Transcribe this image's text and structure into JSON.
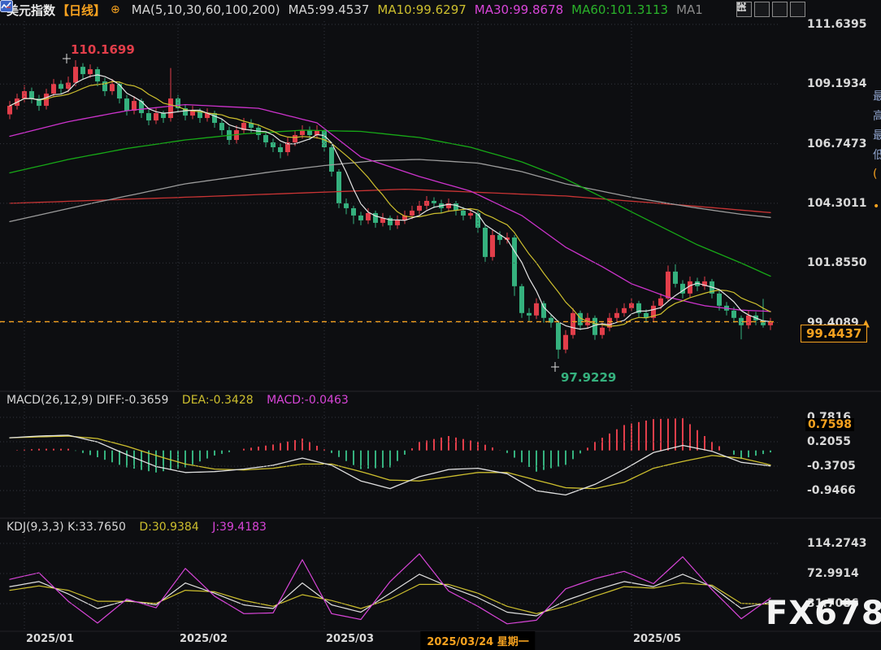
{
  "header": {
    "symbol": "美元指数",
    "period": "【日线】",
    "link_icon": "⊕",
    "ma_group_label": "MA(5,10,30,60,100,200)",
    "ma_items": [
      {
        "label": "MA5:99.4537",
        "color": "#d6d6d6"
      },
      {
        "label": "MA10:99.6297",
        "color": "#cdbf2e"
      },
      {
        "label": "MA30:99.8678",
        "color": "#d845d8"
      },
      {
        "label": "MA60:101.3113",
        "color": "#2ab22a"
      },
      {
        "label": "MA1",
        "color": "#8a8a8a"
      }
    ],
    "toolbar_icons": [
      "move-tool-icon",
      "scale-axis-left-icon",
      "scale-axis-right-icon",
      "exit-chart-icon"
    ]
  },
  "main_axis": {
    "labels": [
      {
        "text": "111.6395",
        "price": 111.6395
      },
      {
        "text": "109.1934",
        "price": 109.1934
      },
      {
        "text": "106.7473",
        "price": 106.7473
      },
      {
        "text": "104.3011",
        "price": 104.3011
      },
      {
        "text": "101.8550",
        "price": 101.855
      },
      {
        "text": "99.4089",
        "price": 99.4089,
        "arrow": "▲"
      }
    ]
  },
  "price_line": {
    "value": 99.4437,
    "last_price_label": "99.4437"
  },
  "annotations": {
    "high": {
      "text": "110.1699",
      "index": 9,
      "price": 110.1699
    },
    "low": {
      "text": "97.9229",
      "index": 75,
      "price": 97.9229
    }
  },
  "macd": {
    "legend": {
      "title": "MACD(26,12,9) DIFF:-0.3659",
      "dea": "DEA:-0.3428",
      "macd": "MACD:-0.0463"
    },
    "axis_labels": [
      {
        "text": "0.7816",
        "value": 0.7816
      },
      {
        "text": "0.2055",
        "value": 0.2055
      },
      {
        "text": "-0.3705",
        "value": -0.3705
      },
      {
        "text": "-0.9466",
        "value": -0.9466
      }
    ],
    "axis_highlight": {
      "text": "0.7598",
      "value": 0.7598
    }
  },
  "kdj": {
    "legend": {
      "title": "KDJ(9,3,3) K:33.7650",
      "d": "D:30.9384",
      "j": "J:39.4183"
    },
    "axis_labels": [
      {
        "text": "114.2743",
        "value": 114.2743
      },
      {
        "text": "72.9914",
        "value": 72.9914
      },
      {
        "text": "31.7086",
        "value": 31.7086
      }
    ]
  },
  "x_axis": {
    "labels": [
      {
        "text": "2025/01",
        "index": 2
      },
      {
        "text": "2025/02",
        "index": 23
      },
      {
        "text": "2025/03",
        "index": 43
      },
      {
        "text": "2025/05",
        "index": 85
      }
    ],
    "highlight": {
      "text": "2025/03/24 星期一",
      "index": 64
    }
  },
  "watermark": "FX678",
  "edge_strip_glyphs": [
    "最",
    "高",
    "最",
    "低"
  ],
  "colors": {
    "up": "#e23e4a",
    "down": "#35b17e",
    "ma5": "#e5e5e5",
    "ma10": "#cdbf2e",
    "ma30": "#cc33cc",
    "ma60": "#17a817",
    "ma100": "#9b9b9b",
    "ma200": "#c93434",
    "grid": "#34373e",
    "accent_orange": "#f7a21f",
    "diff_line": "#e0e0e0",
    "dea_line": "#cdbf2e",
    "k_line": "#e0e0e0",
    "d_line": "#cdbf2e",
    "j_line": "#d845d8"
  },
  "chart_data": {
    "type": "candlestick+indicators",
    "symbol": "美元指数",
    "interval": "日线",
    "x_gridline_indices": [
      2,
      23,
      43,
      64,
      85
    ],
    "candles_ohlc": [
      [
        107.95,
        108.5,
        107.75,
        108.3
      ],
      [
        108.3,
        108.8,
        108.15,
        108.6
      ],
      [
        108.6,
        109.15,
        108.45,
        108.9
      ],
      [
        108.9,
        109.05,
        108.4,
        108.6
      ],
      [
        108.6,
        108.75,
        108.1,
        108.3
      ],
      [
        108.3,
        109.0,
        108.15,
        108.8
      ],
      [
        108.8,
        109.4,
        108.65,
        109.2
      ],
      [
        109.2,
        109.35,
        108.8,
        109.0
      ],
      [
        109.0,
        109.5,
        108.85,
        109.25
      ],
      [
        109.25,
        110.1699,
        109.1,
        109.9
      ],
      [
        109.9,
        110.05,
        109.4,
        109.6
      ],
      [
        109.6,
        110.0,
        109.45,
        109.8
      ],
      [
        109.8,
        109.9,
        109.1,
        109.3
      ],
      [
        109.3,
        109.45,
        108.7,
        108.9
      ],
      [
        108.9,
        109.4,
        108.75,
        109.2
      ],
      [
        109.2,
        109.3,
        108.4,
        108.6
      ],
      [
        108.6,
        108.75,
        107.9,
        108.1
      ],
      [
        108.1,
        108.7,
        107.95,
        108.5
      ],
      [
        108.5,
        108.6,
        107.8,
        108.0
      ],
      [
        108.0,
        108.15,
        107.5,
        107.7
      ],
      [
        107.7,
        108.2,
        107.55,
        108.0
      ],
      [
        108.0,
        108.1,
        107.6,
        107.8
      ],
      [
        107.8,
        109.85,
        107.65,
        108.6
      ],
      [
        108.6,
        108.75,
        108.0,
        108.2
      ],
      [
        108.2,
        108.35,
        107.7,
        107.9
      ],
      [
        107.9,
        108.3,
        107.75,
        108.1
      ],
      [
        108.1,
        108.2,
        107.6,
        107.8
      ],
      [
        107.8,
        108.2,
        107.65,
        108.0
      ],
      [
        108.0,
        108.1,
        107.4,
        107.6
      ],
      [
        107.6,
        107.75,
        107.1,
        107.3
      ],
      [
        107.3,
        107.45,
        106.7,
        106.9
      ],
      [
        106.9,
        107.5,
        106.75,
        107.3
      ],
      [
        107.3,
        107.8,
        107.15,
        107.6
      ],
      [
        107.6,
        107.75,
        107.2,
        107.4
      ],
      [
        107.4,
        107.55,
        106.9,
        107.1
      ],
      [
        107.1,
        107.25,
        106.6,
        106.8
      ],
      [
        106.8,
        106.95,
        106.4,
        106.6
      ],
      [
        106.6,
        106.75,
        106.15,
        106.4
      ],
      [
        106.4,
        107.0,
        106.25,
        106.8
      ],
      [
        106.8,
        107.3,
        106.65,
        107.1
      ],
      [
        107.1,
        107.5,
        106.95,
        107.3
      ],
      [
        107.3,
        107.45,
        106.9,
        107.1
      ],
      [
        107.1,
        107.5,
        106.95,
        107.3
      ],
      [
        107.3,
        107.4,
        106.4,
        106.6
      ],
      [
        106.6,
        106.7,
        105.4,
        105.6
      ],
      [
        105.6,
        105.7,
        104.1,
        104.3
      ],
      [
        104.3,
        104.5,
        103.85,
        104.1
      ],
      [
        104.1,
        104.2,
        103.45,
        103.8
      ],
      [
        103.8,
        103.95,
        103.4,
        103.6
      ],
      [
        103.6,
        104.1,
        103.45,
        103.9
      ],
      [
        103.9,
        104.0,
        103.3,
        103.5
      ],
      [
        103.5,
        103.9,
        103.35,
        103.7
      ],
      [
        103.7,
        103.8,
        103.2,
        103.4
      ],
      [
        103.4,
        103.8,
        103.25,
        103.6
      ],
      [
        103.6,
        104.0,
        103.45,
        103.8
      ],
      [
        103.8,
        104.2,
        103.65,
        104.0
      ],
      [
        104.0,
        104.4,
        103.85,
        104.2
      ],
      [
        104.2,
        104.6,
        104.05,
        104.4
      ],
      [
        104.4,
        104.55,
        104.1,
        104.3
      ],
      [
        104.3,
        104.45,
        103.9,
        104.1
      ],
      [
        104.1,
        104.5,
        103.95,
        104.3
      ],
      [
        104.3,
        104.4,
        103.8,
        104.0
      ],
      [
        104.0,
        104.15,
        103.6,
        103.8
      ],
      [
        103.8,
        104.1,
        103.65,
        103.9
      ],
      [
        103.9,
        104.0,
        103.1,
        103.3
      ],
      [
        103.3,
        103.4,
        101.9,
        102.1
      ],
      [
        102.1,
        103.2,
        101.95,
        103.0
      ],
      [
        103.0,
        103.15,
        102.6,
        102.8
      ],
      [
        102.8,
        103.1,
        102.65,
        102.9
      ],
      [
        102.9,
        103.0,
        100.5,
        100.9
      ],
      [
        100.9,
        101.0,
        99.6,
        99.8
      ],
      [
        99.8,
        100.0,
        99.45,
        99.7
      ],
      [
        99.7,
        100.4,
        99.55,
        100.2
      ],
      [
        100.2,
        100.3,
        99.4,
        99.6
      ],
      [
        99.6,
        99.75,
        99.2,
        99.4
      ],
      [
        99.4,
        99.5,
        97.9229,
        98.3
      ],
      [
        98.3,
        99.1,
        98.15,
        98.9
      ],
      [
        98.9,
        100.0,
        98.75,
        99.8
      ],
      [
        99.8,
        99.9,
        99.1,
        99.3
      ],
      [
        99.3,
        99.8,
        99.15,
        99.6
      ],
      [
        99.6,
        99.7,
        98.7,
        98.9
      ],
      [
        98.9,
        99.4,
        98.75,
        99.2
      ],
      [
        99.2,
        99.8,
        99.05,
        99.6
      ],
      [
        99.6,
        100.0,
        99.45,
        99.8
      ],
      [
        99.8,
        100.2,
        99.65,
        100.0
      ],
      [
        100.0,
        100.4,
        99.85,
        100.2
      ],
      [
        100.2,
        100.3,
        99.6,
        99.8
      ],
      [
        99.8,
        99.95,
        99.4,
        99.6
      ],
      [
        99.6,
        100.3,
        99.45,
        100.1
      ],
      [
        100.1,
        100.6,
        99.95,
        100.4
      ],
      [
        100.4,
        101.75,
        100.3,
        101.5
      ],
      [
        101.5,
        101.8,
        100.85,
        101.0
      ],
      [
        101.0,
        101.15,
        100.4,
        100.6
      ],
      [
        100.6,
        101.3,
        100.45,
        101.1
      ],
      [
        101.1,
        101.25,
        100.7,
        100.9
      ],
      [
        100.9,
        101.3,
        100.75,
        101.1
      ],
      [
        101.1,
        101.2,
        100.4,
        100.6
      ],
      [
        100.6,
        100.75,
        99.9,
        100.1
      ],
      [
        100.1,
        100.25,
        99.7,
        99.9
      ],
      [
        99.9,
        100.05,
        99.4,
        99.6
      ],
      [
        99.6,
        99.7,
        98.72,
        99.3
      ],
      [
        99.3,
        99.9,
        99.15,
        99.7
      ],
      [
        99.7,
        99.85,
        99.3,
        99.5
      ],
      [
        99.5,
        100.38,
        99.2,
        99.3
      ],
      [
        99.3,
        99.6,
        99.1,
        99.4437
      ]
    ],
    "ma30_points": [
      [
        0,
        107.05
      ],
      [
        8,
        107.65
      ],
      [
        16,
        108.1
      ],
      [
        24,
        108.35
      ],
      [
        34,
        108.2
      ],
      [
        42,
        107.6
      ],
      [
        48,
        106.2
      ],
      [
        56,
        105.4
      ],
      [
        63,
        104.8
      ],
      [
        70,
        103.8
      ],
      [
        76,
        102.5
      ],
      [
        81,
        101.7
      ],
      [
        85,
        101.0
      ],
      [
        90,
        100.45
      ],
      [
        95,
        100.1
      ],
      [
        100,
        99.92
      ],
      [
        104,
        99.8678
      ]
    ],
    "ma60_points": [
      [
        0,
        105.55
      ],
      [
        8,
        106.1
      ],
      [
        16,
        106.55
      ],
      [
        24,
        106.9
      ],
      [
        32,
        107.15
      ],
      [
        40,
        107.3
      ],
      [
        48,
        107.25
      ],
      [
        56,
        107.0
      ],
      [
        63,
        106.6
      ],
      [
        70,
        106.0
      ],
      [
        76,
        105.3
      ],
      [
        82,
        104.4
      ],
      [
        88,
        103.5
      ],
      [
        94,
        102.6
      ],
      [
        100,
        101.85
      ],
      [
        104,
        101.3113
      ]
    ],
    "ma100_points": [
      [
        0,
        103.55
      ],
      [
        12,
        104.35
      ],
      [
        24,
        105.1
      ],
      [
        36,
        105.6
      ],
      [
        43,
        105.85
      ],
      [
        50,
        106.05
      ],
      [
        56,
        106.1
      ],
      [
        64,
        105.95
      ],
      [
        70,
        105.6
      ],
      [
        76,
        105.1
      ],
      [
        85,
        104.55
      ],
      [
        93,
        104.15
      ],
      [
        100,
        103.85
      ],
      [
        104,
        103.72
      ]
    ],
    "ma200_points": [
      [
        0,
        104.3
      ],
      [
        24,
        104.55
      ],
      [
        54,
        104.88
      ],
      [
        76,
        104.6
      ],
      [
        93,
        104.2
      ],
      [
        104,
        103.92
      ]
    ],
    "macd": {
      "gridline_values": [
        0.7816,
        0.2055,
        -0.3705,
        -0.9466
      ],
      "diff_points": [
        [
          0,
          0.3
        ],
        [
          4,
          0.34
        ],
        [
          8,
          0.36
        ],
        [
          12,
          0.2
        ],
        [
          16,
          -0.1
        ],
        [
          20,
          -0.38
        ],
        [
          24,
          -0.52
        ],
        [
          28,
          -0.5
        ],
        [
          32,
          -0.44
        ],
        [
          36,
          -0.35
        ],
        [
          40,
          -0.18
        ],
        [
          44,
          -0.35
        ],
        [
          48,
          -0.72
        ],
        [
          52,
          -0.9
        ],
        [
          56,
          -0.62
        ],
        [
          60,
          -0.45
        ],
        [
          64,
          -0.42
        ],
        [
          68,
          -0.55
        ],
        [
          72,
          -0.95
        ],
        [
          76,
          -1.05
        ],
        [
          80,
          -0.8
        ],
        [
          84,
          -0.45
        ],
        [
          88,
          -0.05
        ],
        [
          92,
          0.12
        ],
        [
          96,
          -0.02
        ],
        [
          100,
          -0.28
        ],
        [
          104,
          -0.3659
        ]
      ],
      "dea_points": [
        [
          0,
          0.3
        ],
        [
          4,
          0.32
        ],
        [
          8,
          0.34
        ],
        [
          12,
          0.28
        ],
        [
          16,
          0.1
        ],
        [
          20,
          -0.12
        ],
        [
          24,
          -0.32
        ],
        [
          28,
          -0.44
        ],
        [
          32,
          -0.46
        ],
        [
          36,
          -0.42
        ],
        [
          40,
          -0.32
        ],
        [
          44,
          -0.32
        ],
        [
          48,
          -0.5
        ],
        [
          52,
          -0.7
        ],
        [
          56,
          -0.72
        ],
        [
          60,
          -0.62
        ],
        [
          64,
          -0.52
        ],
        [
          68,
          -0.52
        ],
        [
          72,
          -0.7
        ],
        [
          76,
          -0.88
        ],
        [
          80,
          -0.9
        ],
        [
          84,
          -0.75
        ],
        [
          88,
          -0.42
        ],
        [
          92,
          -0.26
        ],
        [
          96,
          -0.12
        ],
        [
          100,
          -0.18
        ],
        [
          104,
          -0.3428
        ]
      ],
      "histogram_rule": "2*(diff-dea)"
    },
    "kdj": {
      "gridline_values": [
        114.2743,
        72.9914,
        31.7086
      ],
      "k_points": [
        [
          0,
          55
        ],
        [
          4,
          62
        ],
        [
          8,
          45
        ],
        [
          12,
          25
        ],
        [
          16,
          36
        ],
        [
          20,
          30
        ],
        [
          24,
          60
        ],
        [
          28,
          46
        ],
        [
          32,
          30
        ],
        [
          36,
          25
        ],
        [
          40,
          60
        ],
        [
          44,
          30
        ],
        [
          48,
          20
        ],
        [
          52,
          46
        ],
        [
          56,
          72
        ],
        [
          60,
          55
        ],
        [
          64,
          40
        ],
        [
          68,
          20
        ],
        [
          72,
          15
        ],
        [
          76,
          36
        ],
        [
          80,
          50
        ],
        [
          84,
          62
        ],
        [
          88,
          55
        ],
        [
          92,
          72
        ],
        [
          96,
          55
        ],
        [
          100,
          25
        ],
        [
          104,
          33.765
        ]
      ],
      "d_points": [
        [
          0,
          50
        ],
        [
          4,
          56
        ],
        [
          8,
          50
        ],
        [
          12,
          35
        ],
        [
          16,
          35
        ],
        [
          20,
          32
        ],
        [
          24,
          50
        ],
        [
          28,
          48
        ],
        [
          32,
          36
        ],
        [
          36,
          28
        ],
        [
          40,
          44
        ],
        [
          44,
          36
        ],
        [
          48,
          25
        ],
        [
          52,
          38
        ],
        [
          56,
          58
        ],
        [
          60,
          58
        ],
        [
          64,
          46
        ],
        [
          68,
          28
        ],
        [
          72,
          18
        ],
        [
          76,
          28
        ],
        [
          80,
          42
        ],
        [
          84,
          55
        ],
        [
          88,
          53
        ],
        [
          92,
          60
        ],
        [
          96,
          57
        ],
        [
          100,
          32
        ],
        [
          104,
          30.9384
        ]
      ],
      "j_rule": "3*K-2*D"
    }
  }
}
